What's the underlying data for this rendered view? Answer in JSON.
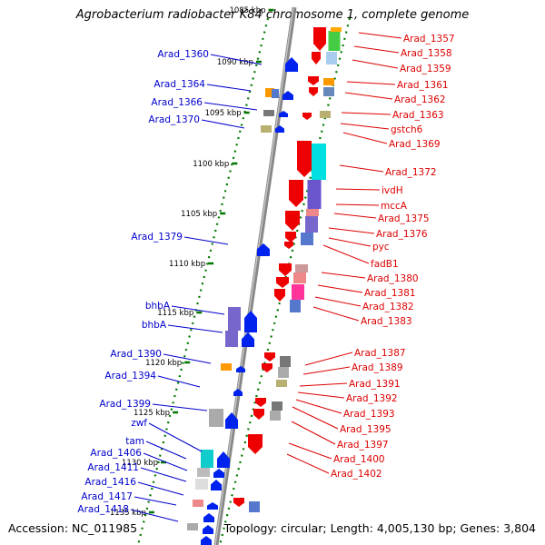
{
  "title": "Agrobacterium radiobacter K84 chromosome 1, complete genome",
  "footer": {
    "accession": "Accession: NC_011985",
    "topology": "Topology: circular; Length: 4,005,130 bp; Genes: 3,804"
  },
  "colors": {
    "forward_label": "#0000cc",
    "reverse_label": "#dd0000",
    "tick": "#007700",
    "backbone": "#888888"
  },
  "scale_ticks": [
    "1085 kbp",
    "1090 kbp",
    "1095 kbp",
    "1100 kbp",
    "1105 kbp",
    "1110 kbp",
    "1115 kbp",
    "1120 kbp",
    "1125 kbp",
    "1130 kbp",
    "1135 kbp"
  ],
  "forward_genes": [
    "Arad_1360",
    "Arad_1364",
    "Arad_1366",
    "Arad_1370",
    "Arad_1379",
    "bhbA",
    "bhbA",
    "Arad_1390",
    "Arad_1394",
    "Arad_1399",
    "zwf",
    "tam",
    "Arad_1406",
    "Arad_1411",
    "Arad_1416",
    "Arad_1417",
    "Arad_1418"
  ],
  "reverse_genes": [
    "Arad_1357",
    "Arad_1358",
    "Arad_1359",
    "Arad_1361",
    "Arad_1362",
    "Arad_1363",
    "gstch6",
    "Arad_1369",
    "Arad_1372",
    "ivdH",
    "mccA",
    "Arad_1375",
    "Arad_1376",
    "pyc",
    "fadB1",
    "Arad_1380",
    "Arad_1381",
    "Arad_1382",
    "Arad_1383",
    "Arad_1387",
    "Arad_1389",
    "Arad_1391",
    "Arad_1392",
    "Arad_1393",
    "Arad_1395",
    "Arad_1397",
    "Arad_1400",
    "Arad_1402"
  ]
}
